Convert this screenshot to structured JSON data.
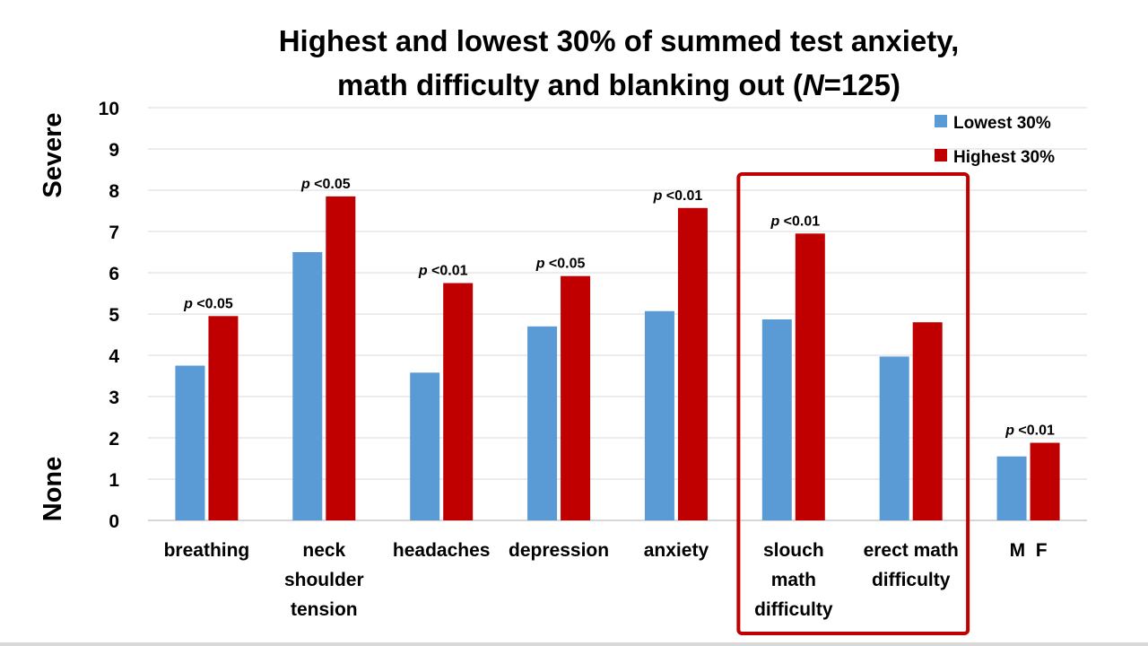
{
  "chart_data": {
    "type": "bar",
    "title": [
      "Highest and lowest 30% of  summed test anxiety,",
      "math difficulty and blanking out (N=125)"
    ],
    "title_italic_fragment": "N",
    "ylim": [
      0,
      10
    ],
    "yticks": [
      0,
      1,
      2,
      3,
      4,
      5,
      6,
      7,
      8,
      9,
      10
    ],
    "ylabel_top": "Severe",
    "ylabel_bottom": "None",
    "categories": [
      [
        "breathing"
      ],
      [
        "neck",
        "shoulder",
        "tension"
      ],
      [
        "headaches"
      ],
      [
        "depression"
      ],
      [
        "anxiety"
      ],
      [
        "slouch",
        "math",
        "difficulty"
      ],
      [
        "erect math",
        "difficulty"
      ],
      [
        "M  F"
      ]
    ],
    "series": [
      {
        "name": "Lowest 30%",
        "color": "#5b9bd5",
        "values": [
          3.75,
          6.5,
          3.58,
          4.7,
          5.07,
          4.87,
          3.97,
          1.55
        ]
      },
      {
        "name": "Highest 30%",
        "color": "#c00000",
        "values": [
          4.95,
          7.85,
          5.75,
          5.92,
          7.57,
          6.95,
          4.8,
          1.88
        ]
      }
    ],
    "annotations": [
      {
        "category": 0,
        "text": "p <0.05"
      },
      {
        "category": 1,
        "text": "p <0.05"
      },
      {
        "category": 2,
        "text": "p <0.01"
      },
      {
        "category": 3,
        "text": "p <0.05"
      },
      {
        "category": 4,
        "text": "p <0.01"
      },
      {
        "category": 5,
        "text": "p <0.01"
      },
      {
        "category": 7,
        "text": "p <0.01"
      }
    ],
    "highlight_box": {
      "categories": [
        5,
        6
      ],
      "color": "#c00000"
    },
    "legend": {
      "position": "top-right"
    }
  }
}
